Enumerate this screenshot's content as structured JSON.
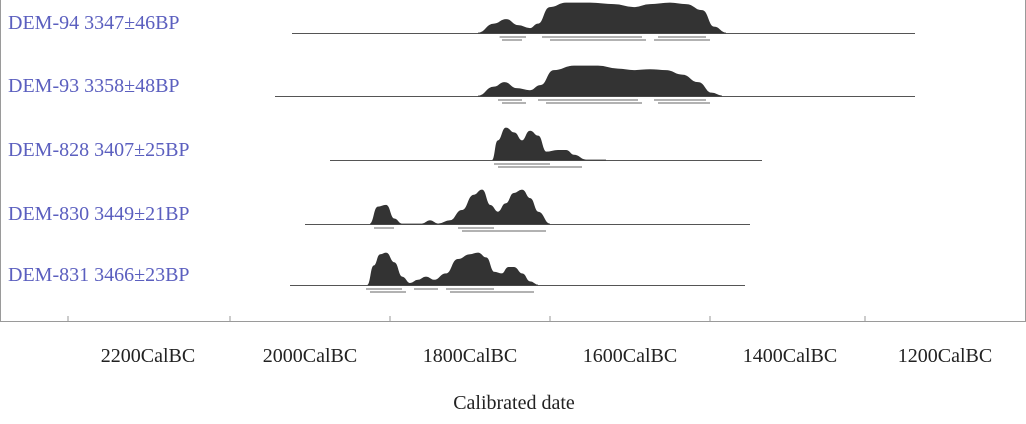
{
  "chart_data": {
    "type": "area",
    "title": "",
    "xlabel": "Calibrated date",
    "ylabel": "",
    "x_unit": "year BC",
    "xlim": [
      2200,
      1200
    ],
    "x_ticks": [
      {
        "value": 2200,
        "label": "2200CalBC"
      },
      {
        "value": 2000,
        "label": "2000CalBC"
      },
      {
        "value": 1800,
        "label": "1800CalBC"
      },
      {
        "value": 1600,
        "label": "1600CalBC"
      },
      {
        "value": 1400,
        "label": "1400CalBC"
      },
      {
        "value": 1200,
        "label": "1200CalBC"
      }
    ],
    "series": [
      {
        "name": "DEM-94 3347±46BP",
        "baseline_range": [
          1920,
          1155
        ],
        "density": [
          [
            1790,
            0
          ],
          [
            1770,
            0.3
          ],
          [
            1755,
            0.45
          ],
          [
            1740,
            0.25
          ],
          [
            1725,
            0.15
          ],
          [
            1715,
            0.3
          ],
          [
            1700,
            0.85
          ],
          [
            1680,
            1.0
          ],
          [
            1650,
            1.0
          ],
          [
            1620,
            0.95
          ],
          [
            1595,
            0.85
          ],
          [
            1575,
            0.95
          ],
          [
            1550,
            1.0
          ],
          [
            1530,
            0.95
          ],
          [
            1510,
            0.75
          ],
          [
            1495,
            0.2
          ],
          [
            1480,
            0
          ]
        ],
        "range_bars": [
          [
            1763,
            1730
          ],
          [
            1710,
            1585
          ],
          [
            1565,
            1505
          ],
          [
            1760,
            1735
          ],
          [
            1700,
            1580
          ],
          [
            1570,
            1500
          ]
        ]
      },
      {
        "name": "DEM-93 3358±48BP",
        "baseline_range": [
          1920,
          1155
        ],
        "density": [
          [
            1790,
            0
          ],
          [
            1770,
            0.3
          ],
          [
            1757,
            0.45
          ],
          [
            1742,
            0.25
          ],
          [
            1725,
            0.18
          ],
          [
            1712,
            0.35
          ],
          [
            1695,
            0.85
          ],
          [
            1670,
            1.0
          ],
          [
            1640,
            1.0
          ],
          [
            1615,
            0.9
          ],
          [
            1595,
            0.85
          ],
          [
            1575,
            0.88
          ],
          [
            1555,
            0.85
          ],
          [
            1535,
            0.7
          ],
          [
            1515,
            0.45
          ],
          [
            1498,
            0.1
          ],
          [
            1485,
            0
          ]
        ],
        "range_bars": [
          [
            1765,
            1735
          ],
          [
            1715,
            1590
          ],
          [
            1570,
            1505
          ],
          [
            1760,
            1730
          ],
          [
            1705,
            1585
          ],
          [
            1565,
            1500
          ]
        ]
      },
      {
        "name": "DEM-828 3407±25BP",
        "baseline_range": [
          1920,
          1420
        ],
        "density": [
          [
            1772,
            0
          ],
          [
            1765,
            0.6
          ],
          [
            1755,
            1.0
          ],
          [
            1745,
            0.85
          ],
          [
            1735,
            0.6
          ],
          [
            1725,
            0.9
          ],
          [
            1715,
            0.75
          ],
          [
            1705,
            0.25
          ],
          [
            1690,
            0.3
          ],
          [
            1680,
            0.3
          ],
          [
            1670,
            0.15
          ],
          [
            1655,
            0
          ],
          [
            1630,
            0
          ]
        ],
        "range_bars": [
          [
            1770,
            1700
          ],
          [
            1765,
            1660
          ]
        ]
      },
      {
        "name": "DEM-830 3449±21BP",
        "baseline_range": [
          2135,
          1445
        ],
        "density": [
          [
            1925,
            0
          ],
          [
            1915,
            0.5
          ],
          [
            1905,
            0.55
          ],
          [
            1895,
            0.15
          ],
          [
            1885,
            0
          ],
          [
            1860,
            0
          ],
          [
            1850,
            0.1
          ],
          [
            1840,
            0
          ],
          [
            1825,
            0.1
          ],
          [
            1810,
            0.4
          ],
          [
            1795,
            0.85
          ],
          [
            1785,
            1.0
          ],
          [
            1775,
            0.55
          ],
          [
            1765,
            0.35
          ],
          [
            1755,
            0.6
          ],
          [
            1745,
            0.9
          ],
          [
            1735,
            1.0
          ],
          [
            1725,
            0.75
          ],
          [
            1715,
            0.35
          ],
          [
            1700,
            0
          ]
        ],
        "range_bars": [
          [
            1920,
            1895
          ],
          [
            1815,
            1770
          ],
          [
            1760,
            1710
          ],
          [
            1810,
            1705
          ]
        ]
      },
      {
        "name": "DEM-831 3466±23BP",
        "baseline_range": [
          2135,
          1445
        ],
        "density": [
          [
            1928,
            0
          ],
          [
            1920,
            0.6
          ],
          [
            1912,
            0.95
          ],
          [
            1905,
            1.0
          ],
          [
            1895,
            0.7
          ],
          [
            1885,
            0.25
          ],
          [
            1875,
            0.05
          ],
          [
            1865,
            0.15
          ],
          [
            1855,
            0.25
          ],
          [
            1845,
            0.15
          ],
          [
            1830,
            0.35
          ],
          [
            1815,
            0.8
          ],
          [
            1800,
            0.95
          ],
          [
            1790,
            1.0
          ],
          [
            1780,
            0.85
          ],
          [
            1770,
            0.4
          ],
          [
            1760,
            0.35
          ],
          [
            1752,
            0.55
          ],
          [
            1745,
            0.55
          ],
          [
            1735,
            0.35
          ],
          [
            1725,
            0.1
          ],
          [
            1715,
            0
          ]
        ],
        "range_bars": [
          [
            1930,
            1885
          ],
          [
            1870,
            1840
          ],
          [
            1830,
            1770
          ],
          [
            1760,
            1720
          ],
          [
            1925,
            1880
          ],
          [
            1825,
            1720
          ]
        ]
      }
    ],
    "colors": {
      "label": "#5b5fbf",
      "fill": "#333333",
      "baseline": "#555555",
      "frame": "#9a9a9a"
    }
  }
}
